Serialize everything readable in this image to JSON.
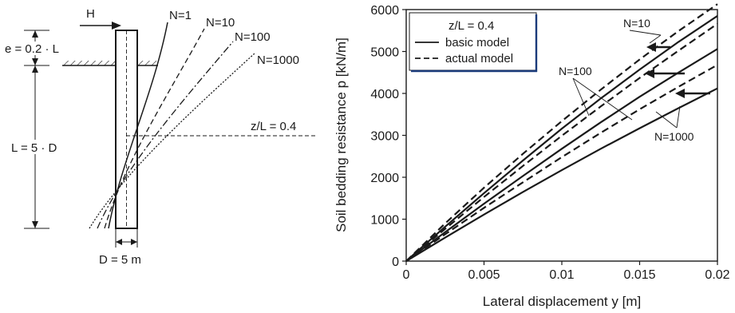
{
  "schematic": {
    "force_label": "H",
    "embedment_label": "e = 0.2 · L",
    "length_label": "L = 5 · D",
    "diameter_label": "D = 5 m",
    "depth_label": "z/L = 0.4",
    "deflection_labels": [
      "N=1",
      "N=10",
      "N=100",
      "N=1000"
    ]
  },
  "chart_data": {
    "type": "line",
    "xlabel": "Lateral displacement y [m]",
    "ylabel": "Soil bedding resistance p [kN/m]",
    "xlim": [
      0,
      0.02
    ],
    "ylim": [
      0,
      6000
    ],
    "xticks": [
      "0",
      "0.005",
      "0.01",
      "0.015",
      "0.02"
    ],
    "yticks": [
      "0",
      "1000",
      "2000",
      "3000",
      "4000",
      "5000",
      "6000"
    ],
    "grid": false,
    "legend": {
      "placement": "top-left",
      "title": "z/L = 0.4",
      "entries": [
        {
          "label": "basic model",
          "style": "solid"
        },
        {
          "label": "actual model",
          "style": "dashed"
        }
      ]
    },
    "annotations": [
      "N=10",
      "N=100",
      "N=1000"
    ],
    "series": [
      {
        "style": "dashed",
        "x": [
          0,
          0.0025,
          0.005,
          0.0075,
          0.01,
          0.0125,
          0.015,
          0.0175,
          0.02
        ],
        "y": [
          0,
          900,
          1750,
          2560,
          3340,
          4090,
          4810,
          5490,
          6130
        ]
      },
      {
        "style": "solid",
        "x": [
          0,
          0.0025,
          0.005,
          0.0075,
          0.01,
          0.0125,
          0.015,
          0.0175,
          0.02
        ],
        "y": [
          0,
          820,
          1620,
          2400,
          3160,
          3880,
          4570,
          5230,
          5850
        ]
      },
      {
        "style": "dashed",
        "x": [
          0,
          0.0025,
          0.005,
          0.0075,
          0.01,
          0.0125,
          0.015,
          0.0175,
          0.02
        ],
        "y": [
          0,
          770,
          1530,
          2270,
          2990,
          3690,
          4370,
          5020,
          5660
        ]
      },
      {
        "style": "solid",
        "x": [
          0,
          0.0025,
          0.005,
          0.0075,
          0.01,
          0.0125,
          0.015,
          0.0175,
          0.02
        ],
        "y": [
          0,
          690,
          1370,
          2030,
          2680,
          3310,
          3920,
          4500,
          5060
        ]
      },
      {
        "style": "dashed",
        "x": [
          0,
          0.0025,
          0.005,
          0.0075,
          0.01,
          0.0125,
          0.015,
          0.0175,
          0.02
        ],
        "y": [
          0,
          640,
          1270,
          1880,
          2480,
          3060,
          3620,
          4160,
          4680
        ]
      },
      {
        "style": "solid",
        "x": [
          0,
          0.0025,
          0.005,
          0.0075,
          0.01,
          0.0125,
          0.015,
          0.0175,
          0.02
        ],
        "y": [
          0,
          560,
          1110,
          1650,
          2170,
          2680,
          3170,
          3650,
          4120
        ]
      }
    ]
  }
}
